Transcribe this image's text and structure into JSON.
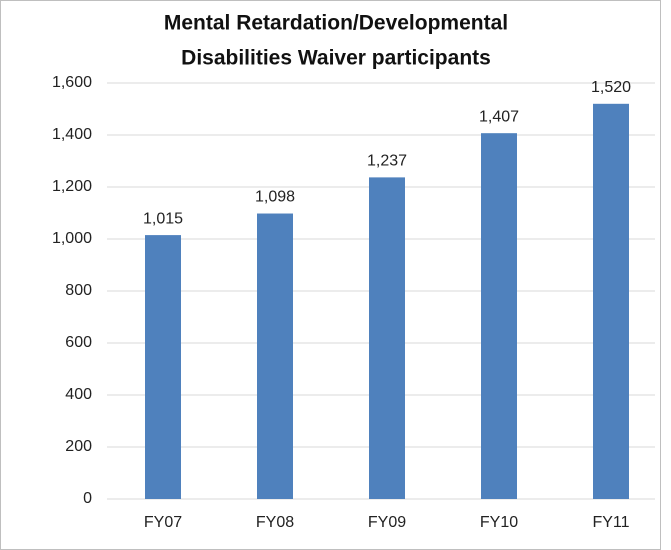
{
  "chart_data": {
    "type": "bar",
    "title": [
      "Mental Retardation/Developmental",
      "Disabilities Waiver participants"
    ],
    "categories": [
      "FY07",
      "FY08",
      "FY09",
      "FY10",
      "FY11"
    ],
    "values": [
      1015,
      1098,
      1237,
      1407,
      1520
    ],
    "value_labels": [
      "1,015",
      "1,098",
      "1,237",
      "1,407",
      "1,520"
    ],
    "color": "#4f81bd",
    "ylim": [
      0,
      1600
    ],
    "yticks": [
      0,
      200,
      400,
      600,
      800,
      {
        "value": 1000,
        "label": "1,000"
      },
      {
        "value": 1200,
        "label": "1,200"
      },
      {
        "value": 1400,
        "label": "1,400"
      },
      {
        "value": 1600,
        "label": "1,600"
      }
    ],
    "grid": true
  }
}
